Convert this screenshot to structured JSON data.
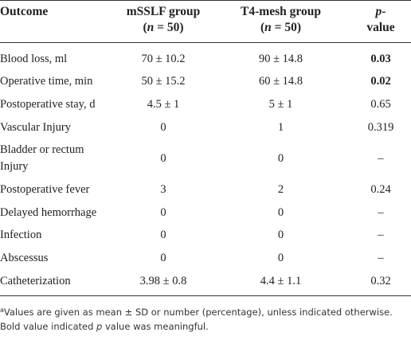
{
  "header": {
    "columns": [
      {
        "line1": "Outcome"
      },
      {
        "line1": "mSSLF group",
        "line2": [
          "(",
          "n",
          " = 50)"
        ]
      },
      {
        "line1": "T4-mesh group",
        "line2": [
          "(",
          "n",
          " = 50)"
        ]
      },
      {
        "line1": [
          "p",
          "-"
        ],
        "line2": "value"
      }
    ]
  },
  "table": {
    "rows": [
      {
        "cells": [
          "Blood loss, ml",
          "70 ± 10.2",
          "90 ± 14.8",
          "0.03"
        ],
        "bold": true
      },
      {
        "cells": [
          "Operative time, min",
          "50 ± 15.2",
          "60 ± 14.8",
          "0.02"
        ],
        "bold": true
      },
      {
        "cells": [
          "Postoperative stay, d",
          "4.5 ± 1",
          "5 ± 1",
          "0.65"
        ],
        "bold": false
      },
      {
        "cells": [
          "Vascular Injury",
          "0",
          "1",
          "0.319"
        ],
        "bold": false
      },
      {
        "cells": [
          "Bladder or rectum Injury",
          "0",
          "0",
          "–"
        ],
        "bold": false
      },
      {
        "cells": [
          "Postoperative fever",
          "3",
          "2",
          "0.24"
        ],
        "bold": false
      },
      {
        "cells": [
          "Delayed hemorrhage",
          "0",
          "0",
          "–"
        ],
        "bold": false
      },
      {
        "cells": [
          "Infection",
          "0",
          "0",
          "–"
        ],
        "bold": false
      },
      {
        "cells": [
          "Abscessus",
          "0",
          "0",
          "–"
        ],
        "bold": false
      },
      {
        "cells": [
          "Catheterization",
          "3.98 ± 0.8",
          "4.4 ± 1.1",
          "0.32"
        ],
        "bold": false
      }
    ]
  },
  "footnote": {
    "marker": "a",
    "parts": [
      "Values are given as mean ± SD or number (percentage), unless indicated otherwise. Bold value indicated ",
      "p",
      " value was meaningful."
    ]
  }
}
